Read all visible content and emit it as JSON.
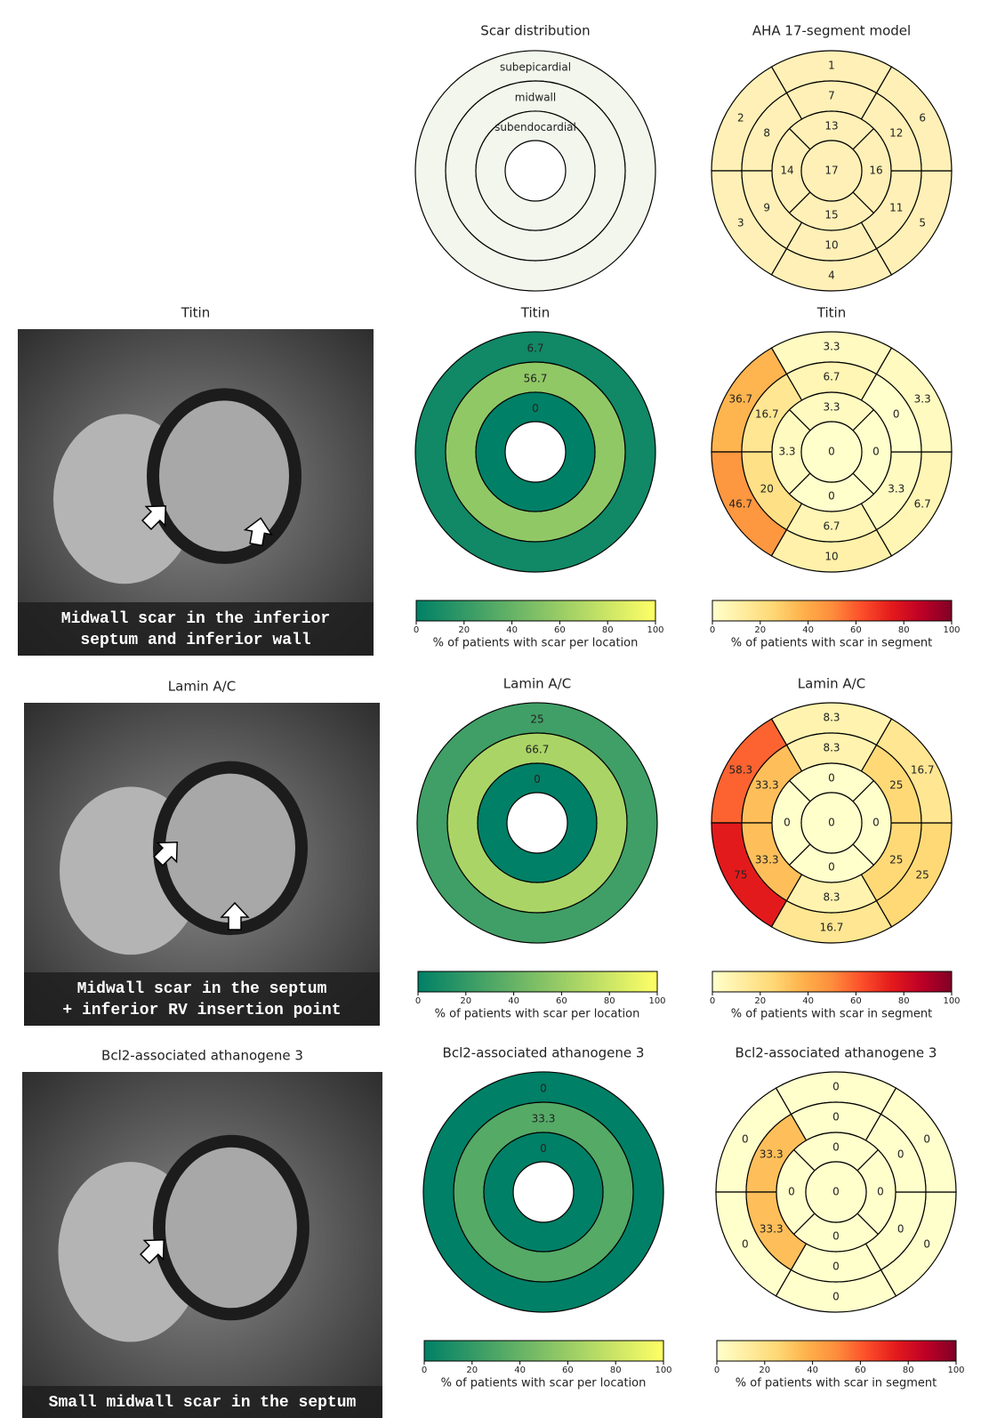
{
  "reference": [
    {
      "type": "layers",
      "title": "Scar distribution",
      "labels": [
        "subepicardial",
        "midwall",
        "subendocardial"
      ],
      "fill": "#f2f6ec"
    },
    {
      "type": "aha",
      "title": "AHA 17-segment model",
      "labels": [
        "1",
        "2",
        "3",
        "4",
        "5",
        "6",
        "7",
        "8",
        "9",
        "10",
        "11",
        "12",
        "13",
        "14",
        "15",
        "16",
        "17"
      ],
      "fill": "#fef0b6"
    }
  ],
  "images": [
    {
      "title": "Titin",
      "caption": [
        "Midwall scar in the inferior",
        "septum and inferior wall"
      ]
    },
    {
      "title": "Lamin A/C",
      "caption": [
        "Midwall scar in the septum",
        "+ inferior RV insertion point"
      ]
    },
    {
      "title": "Bcl2-associated athanogene 3",
      "caption": [
        "Small midwall scar in the septum"
      ]
    }
  ],
  "chart_data": [
    {
      "type": "layers",
      "title": "Titin",
      "values": [
        6.7,
        56.7,
        0
      ],
      "colormap": "summer",
      "colorbar": {
        "label": "% of patients with scar per location",
        "lim": [
          0,
          100
        ],
        "ticks": [
          0,
          20,
          40,
          60,
          80,
          100
        ]
      }
    },
    {
      "type": "aha",
      "title": "Titin",
      "values": [
        3.3,
        36.7,
        46.7,
        10,
        6.7,
        3.3,
        6.7,
        16.7,
        20,
        6.7,
        3.3,
        0,
        3.3,
        3.3,
        0,
        0,
        0
      ],
      "colormap": "YlOrRd",
      "colorbar": {
        "label": "% of patients with scar in segment",
        "lim": [
          0,
          100
        ],
        "ticks": [
          0,
          20,
          40,
          60,
          80,
          100
        ]
      }
    },
    {
      "type": "layers",
      "title": "Lamin A/C",
      "values": [
        25,
        66.7,
        0
      ],
      "colormap": "summer",
      "colorbar": {
        "label": "% of patients with scar per location",
        "lim": [
          0,
          100
        ],
        "ticks": [
          0,
          20,
          40,
          60,
          80,
          100
        ]
      }
    },
    {
      "type": "aha",
      "title": "Lamin A/C",
      "values": [
        8.3,
        58.3,
        75,
        16.7,
        25,
        16.7,
        8.3,
        33.3,
        33.3,
        8.3,
        25,
        25,
        0,
        0,
        0,
        0,
        0
      ],
      "colormap": "YlOrRd",
      "colorbar": {
        "label": "% of patients with scar in segment",
        "lim": [
          0,
          100
        ],
        "ticks": [
          0,
          20,
          40,
          60,
          80,
          100
        ]
      }
    },
    {
      "type": "layers",
      "title": "Bcl2-associated athanogene 3",
      "values": [
        0,
        33.3,
        0
      ],
      "colormap": "summer",
      "colorbar": {
        "label": "% of patients with scar per location",
        "lim": [
          0,
          100
        ],
        "ticks": [
          0,
          20,
          40,
          60,
          80,
          100
        ]
      }
    },
    {
      "type": "aha",
      "title": "Bcl2-associated athanogene 3",
      "values": [
        0,
        0,
        0,
        0,
        0,
        0,
        0,
        33.3,
        33.3,
        0,
        0,
        0,
        0,
        0,
        0,
        0,
        0
      ],
      "colormap": "YlOrRd",
      "colorbar": {
        "label": "% of patients with scar in segment",
        "lim": [
          0,
          100
        ],
        "ticks": [
          0,
          20,
          40,
          60,
          80,
          100
        ]
      }
    }
  ]
}
